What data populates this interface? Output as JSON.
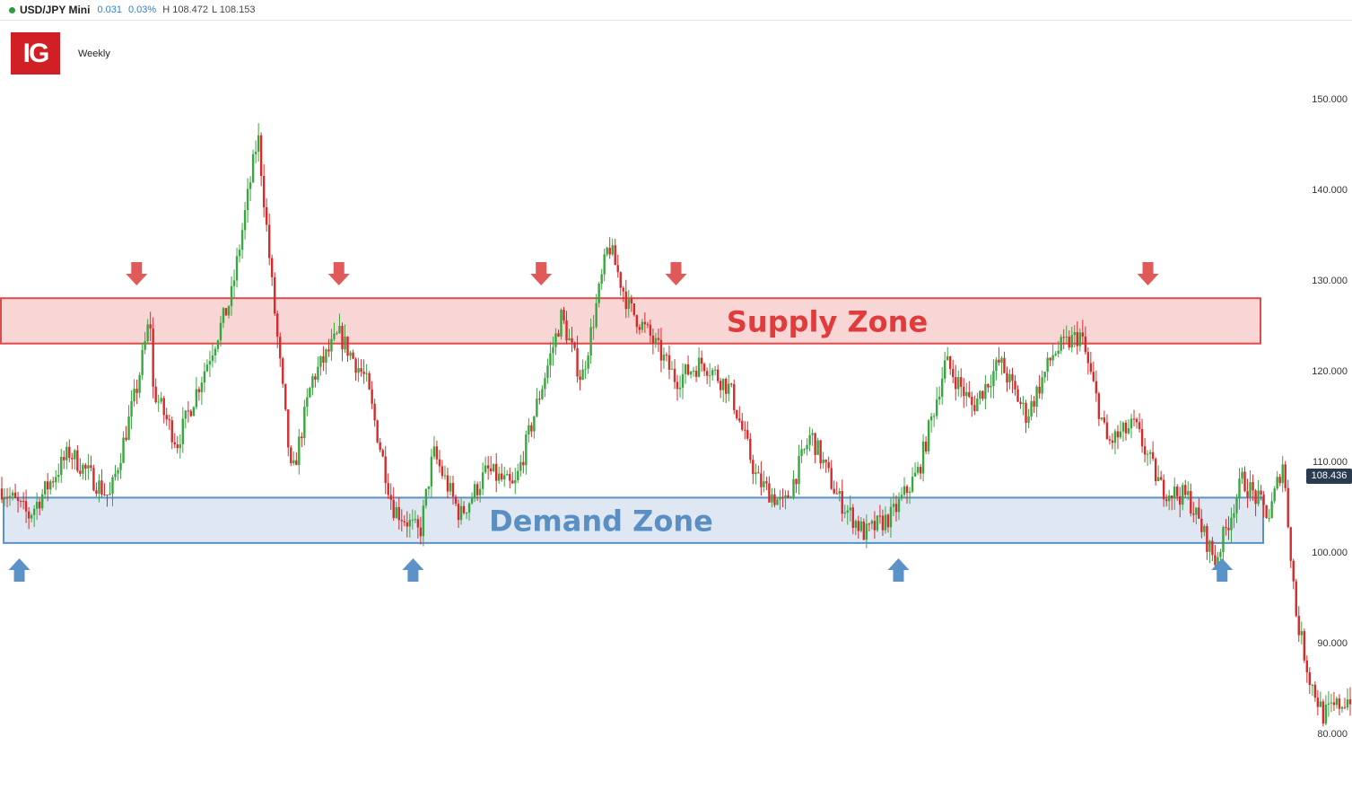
{
  "header": {
    "symbol": "USD/JPY Mini",
    "change": "0.031",
    "change_pct": "0.03%",
    "high": "H 108.472",
    "low": "L 108.153"
  },
  "logo": {
    "text": "IG"
  },
  "timeframe": "Weekly",
  "current_price": "108.436",
  "colors": {
    "up": "#3aa63f",
    "down": "#d62b2b",
    "supply_fill": "#f9d6d6",
    "supply_border": "#e04a4a",
    "supply_text": "#e03c3c",
    "demand_fill": "#dfe7f3",
    "demand_border": "#5b92c7",
    "demand_text": "#5a8fc4",
    "red_arrow": "#e05a5a",
    "blue_arrow": "#5b92c7"
  },
  "chart_data": {
    "type": "candlestick",
    "title": "",
    "ylim": [
      78.5,
      152
    ],
    "y_ticks": [
      "150.000",
      "140.000",
      "130.000",
      "120.000",
      "110.000",
      "100.000",
      "90.000",
      "80.000"
    ],
    "y_tick_values": [
      150,
      140,
      130,
      120,
      110,
      100,
      90,
      80
    ],
    "price_path": {
      "description_free_keys": true,
      "x": [
        0,
        2,
        5,
        8,
        10,
        11,
        11.2,
        13,
        15,
        17,
        19,
        19.5,
        20,
        21.5,
        23,
        25,
        27,
        29,
        31,
        32,
        34,
        36,
        38,
        40,
        41.5,
        43,
        45,
        46.5,
        48,
        50,
        52,
        54,
        56,
        58,
        60,
        62,
        64,
        66,
        68,
        70,
        72,
        74,
        76,
        78,
        80,
        82,
        84,
        86,
        88,
        90,
        92,
        94,
        95,
        96,
        97,
        98,
        100
      ],
      "y": [
        107,
        104,
        111,
        106,
        118,
        126,
        118,
        112,
        120,
        128,
        146,
        138,
        130,
        108,
        119,
        124,
        119,
        105,
        102,
        111,
        104,
        109,
        107,
        118,
        126,
        119,
        134,
        127,
        124,
        119,
        121,
        118,
        108,
        105,
        113,
        106,
        102,
        104,
        109,
        121,
        116,
        121,
        115,
        122,
        124,
        112,
        114,
        107,
        106,
        99,
        108,
        104,
        110,
        93,
        86,
        82,
        84
      ]
    },
    "annotations": {
      "supply_zone": {
        "label": "Supply Zone",
        "range": [
          123,
          128
        ]
      },
      "demand_zone": {
        "label": "Demand Zone",
        "range": [
          101,
          106
        ]
      },
      "supply_arrows_x": [
        10,
        25,
        40,
        50,
        85
      ],
      "demand_arrows_x": [
        1.3,
        30.5,
        66.5,
        90.5
      ]
    }
  }
}
